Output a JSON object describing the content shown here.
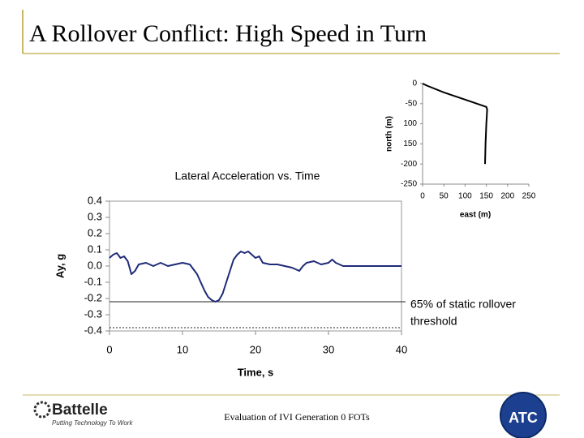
{
  "title": "A Rollover Conflict:  High Speed in Turn",
  "footer": "Evaluation of IVI Generation 0 FOTs",
  "logos": {
    "left": "Battelle",
    "left_tagline": "Putting Technology To Work",
    "right": "ATC"
  },
  "chart_data": [
    {
      "type": "line",
      "title": "Lateral Acceleration vs. Time",
      "x_label": "Time, s",
      "y_label": "Ay, g",
      "xlim": [
        0,
        40
      ],
      "xticks": [
        0,
        10,
        20,
        30,
        40
      ],
      "ylim": [
        -0.4,
        0.4
      ],
      "yticks": [
        -0.4,
        -0.3,
        -0.2,
        -0.1,
        {
          "value": 0,
          "label": "0.0"
        },
        0.1,
        0.2,
        0.3,
        0.4
      ],
      "series": [
        {
          "name": "Ay",
          "color": "#1f2a78",
          "x": [
            0,
            0.5,
            1,
            1.5,
            2,
            2.5,
            3,
            3.5,
            4,
            5,
            6,
            7,
            8,
            9,
            10,
            11,
            11.5,
            12,
            12.5,
            13,
            13.5,
            14,
            14.5,
            15,
            15.5,
            16,
            16.5,
            17,
            17.5,
            18,
            18.5,
            19,
            19.5,
            20,
            20.5,
            21,
            22,
            23,
            24,
            25,
            26,
            26.5,
            27,
            28,
            29,
            30,
            30.5,
            31,
            32,
            35,
            40
          ],
          "values": [
            0.05,
            0.07,
            0.08,
            0.05,
            0.06,
            0.03,
            -0.05,
            -0.03,
            0.01,
            0.02,
            0.0,
            0.02,
            0.0,
            0.01,
            0.02,
            0.01,
            -0.02,
            -0.05,
            -0.1,
            -0.15,
            -0.19,
            -0.21,
            -0.22,
            -0.21,
            -0.17,
            -0.1,
            -0.03,
            0.04,
            0.07,
            0.09,
            0.08,
            0.09,
            0.07,
            0.05,
            0.06,
            0.02,
            0.01,
            0.01,
            0.0,
            -0.01,
            -0.03,
            0.0,
            0.02,
            0.03,
            0.01,
            0.02,
            0.04,
            0.02,
            0.0,
            0.0,
            0.0
          ]
        }
      ],
      "hlines": [
        {
          "value": -0.22,
          "style": "solid"
        },
        {
          "value": -0.38,
          "style": "dotted"
        }
      ],
      "annotation": [
        "65% of static rollover",
        "threshold"
      ]
    },
    {
      "type": "line",
      "x_label": "east (m)",
      "y_label": "north (m)",
      "xlim": [
        0,
        250
      ],
      "xticks": [
        0,
        50,
        100,
        150,
        200,
        250
      ],
      "ylim": [
        -250,
        0
      ],
      "yticks": [
        -250,
        -200,
        {
          "value": -150,
          "label": "150"
        },
        {
          "value": -100,
          "label": "100"
        },
        -50,
        0
      ],
      "series": [
        {
          "name": "path",
          "color": "#000000",
          "x": [
            0,
            10,
            50,
            100,
            150,
            152,
            150,
            148,
            147
          ],
          "values": [
            0,
            -5,
            -22,
            -40,
            -58,
            -65,
            -100,
            -150,
            -200
          ]
        }
      ]
    }
  ]
}
